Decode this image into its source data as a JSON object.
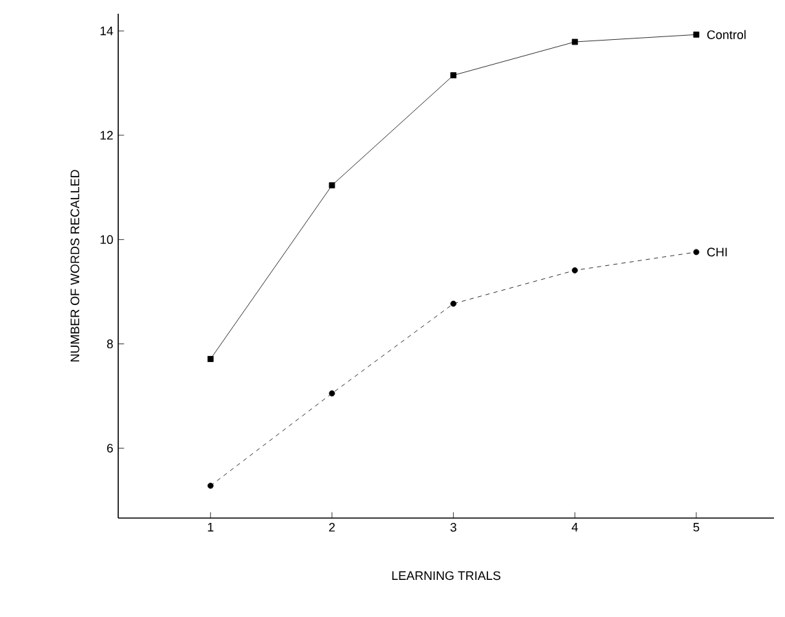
{
  "chart_data": {
    "type": "line",
    "xlabel": "LEARNING TRIALS",
    "ylabel": "NUMBER OF WORDS RECALLED",
    "x": [
      1,
      2,
      3,
      4,
      5
    ],
    "xlim": [
      0.24,
      5.64
    ],
    "ylim": [
      4.66,
      14.33
    ],
    "xticks": [
      1,
      2,
      3,
      4,
      5
    ],
    "yticks": [
      6,
      8,
      10,
      12,
      14
    ],
    "grid": false,
    "series": [
      {
        "name": "Control",
        "color": "#000000",
        "marker": "square",
        "line_style": "solid",
        "values": [
          7.71,
          11.04,
          13.15,
          13.79,
          13.93
        ]
      },
      {
        "name": "CHI",
        "color": "#000000",
        "marker": "circle",
        "line_style": "dashed",
        "values": [
          5.28,
          7.05,
          8.77,
          9.41,
          9.76
        ]
      }
    ]
  }
}
